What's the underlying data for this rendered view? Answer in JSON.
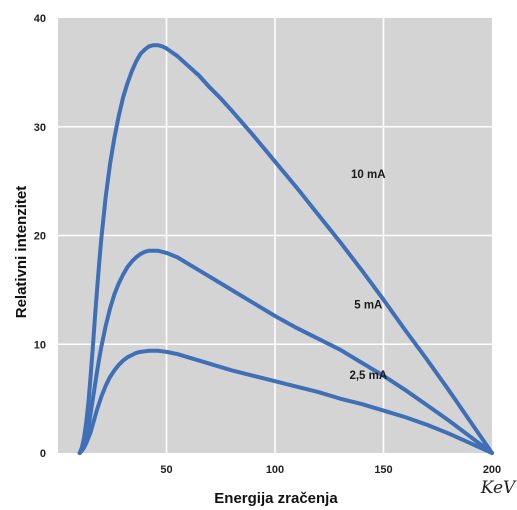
{
  "chart_data": {
    "type": "line",
    "xlabel": "Energija zračenja",
    "ylabel": "Relativni intenzitet",
    "x_unit": "KeV",
    "xlim": [
      0,
      200
    ],
    "ylim": [
      0,
      40
    ],
    "xticks": [
      "50",
      "100",
      "150",
      "200"
    ],
    "yticks": [
      "0",
      "10",
      "20",
      "30",
      "40"
    ],
    "grid": true,
    "background_color": "#d4d4d4",
    "line_color": "#3f6fb7",
    "x": [
      10,
      11,
      12,
      13,
      14,
      15,
      16,
      17,
      18,
      19,
      20,
      22,
      24,
      26,
      28,
      30,
      32,
      34,
      36,
      38,
      40,
      42,
      44,
      46,
      48,
      50,
      55,
      60,
      65,
      70,
      75,
      80,
      90,
      100,
      110,
      120,
      130,
      140,
      150,
      160,
      170,
      180,
      190,
      200
    ],
    "series": [
      {
        "name": "10 mA",
        "values": [
          0,
          0.5,
          1.4,
          2.8,
          4.6,
          7.0,
          9.6,
          12.4,
          15.0,
          17.5,
          19.8,
          23.6,
          26.6,
          29.0,
          31.0,
          32.7,
          34.0,
          35.1,
          36.0,
          36.7,
          37.1,
          37.4,
          37.5,
          37.5,
          37.4,
          37.2,
          36.5,
          35.6,
          34.7,
          33.6,
          32.6,
          31.5,
          29.2,
          26.8,
          24.4,
          21.9,
          19.4,
          16.8,
          14.1,
          11.3,
          8.6,
          5.8,
          2.9,
          0
        ]
      },
      {
        "name": "5 mA",
        "values": [
          0,
          0.3,
          0.8,
          1.5,
          2.4,
          3.6,
          4.9,
          6.2,
          7.5,
          8.7,
          9.8,
          11.7,
          13.3,
          14.6,
          15.6,
          16.4,
          17.1,
          17.6,
          18.0,
          18.3,
          18.5,
          18.6,
          18.6,
          18.6,
          18.5,
          18.4,
          18.0,
          17.4,
          16.8,
          16.2,
          15.6,
          15.0,
          13.8,
          12.6,
          11.5,
          10.5,
          9.5,
          8.3,
          7.1,
          5.8,
          4.4,
          3.0,
          1.5,
          0
        ]
      },
      {
        "name": "2,5 mA",
        "values": [
          0,
          0.2,
          0.5,
          0.9,
          1.4,
          1.9,
          2.6,
          3.3,
          4.0,
          4.6,
          5.2,
          6.2,
          7.0,
          7.6,
          8.1,
          8.5,
          8.8,
          9.0,
          9.2,
          9.3,
          9.35,
          9.4,
          9.4,
          9.4,
          9.35,
          9.3,
          9.1,
          8.8,
          8.5,
          8.2,
          7.9,
          7.6,
          7.1,
          6.6,
          6.1,
          5.6,
          5.0,
          4.5,
          3.9,
          3.3,
          2.6,
          1.8,
          0.9,
          0
        ]
      }
    ]
  }
}
